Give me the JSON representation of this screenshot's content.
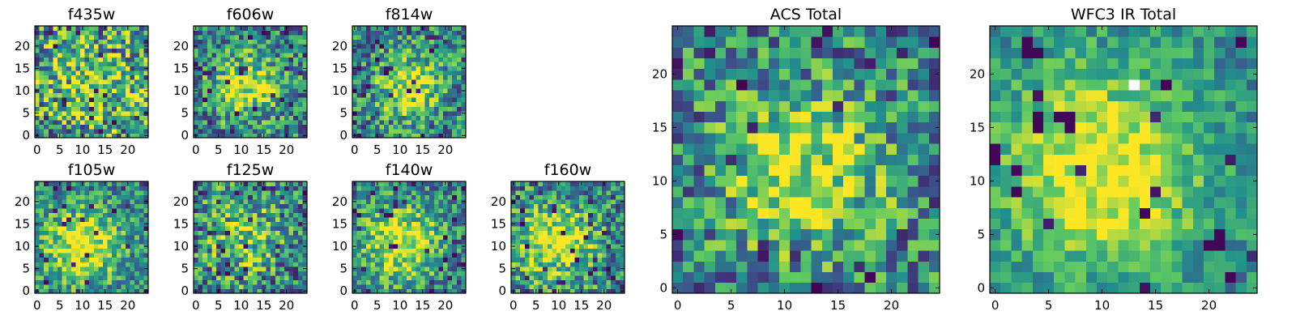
{
  "figure": {
    "colormap": [
      "#440154",
      "#3b528b",
      "#21918c",
      "#5ec962",
      "#fde725"
    ],
    "missing_color": "#ffffff"
  },
  "chart_data": [
    {
      "type": "heatmap",
      "title": "f435w",
      "grid": [
        25,
        25
      ],
      "xlim": [
        -0.5,
        24.5
      ],
      "ylim": [
        -0.5,
        24.5
      ],
      "xticks": [
        0,
        5,
        10,
        15,
        20
      ],
      "yticks": [
        0,
        5,
        10,
        15,
        20
      ],
      "xlabel": "",
      "ylabel": "",
      "values": {
        "center": [
          12,
          12
        ],
        "peak": 0.55,
        "width": 9,
        "noise": 0.45,
        "seed": 11,
        "dark_fraction": 0.03,
        "masked": []
      }
    },
    {
      "type": "heatmap",
      "title": "f606w",
      "grid": [
        25,
        25
      ],
      "xlim": [
        -0.5,
        24.5
      ],
      "ylim": [
        -0.5,
        24.5
      ],
      "xticks": [
        0,
        5,
        10,
        15,
        20
      ],
      "yticks": [
        0,
        5,
        10,
        15,
        20
      ],
      "xlabel": "",
      "ylabel": "",
      "values": {
        "center": [
          11,
          11
        ],
        "peak": 0.9,
        "width": 5,
        "noise": 0.35,
        "seed": 23,
        "dark_fraction": 0.04,
        "masked": []
      }
    },
    {
      "type": "heatmap",
      "title": "f814w",
      "grid": [
        25,
        25
      ],
      "xlim": [
        -0.5,
        24.5
      ],
      "ylim": [
        -0.5,
        24.5
      ],
      "xticks": [
        0,
        5,
        10,
        15,
        20
      ],
      "yticks": [
        0,
        5,
        10,
        15,
        20
      ],
      "xlabel": "",
      "ylabel": "",
      "values": {
        "center": [
          12,
          11
        ],
        "peak": 0.85,
        "width": 5,
        "noise": 0.35,
        "seed": 37,
        "dark_fraction": 0.04,
        "masked": []
      }
    },
    {
      "type": "heatmap",
      "title": "f105w",
      "grid": [
        25,
        25
      ],
      "xlim": [
        -0.5,
        24.5
      ],
      "ylim": [
        -0.5,
        24.5
      ],
      "xticks": [
        0,
        5,
        10,
        15,
        20
      ],
      "yticks": [
        0,
        5,
        10,
        15,
        20
      ],
      "xlabel": "",
      "ylabel": "",
      "values": {
        "center": [
          10,
          10
        ],
        "peak": 1.0,
        "width": 6,
        "noise": 0.3,
        "seed": 41,
        "dark_fraction": 0.05,
        "masked": []
      }
    },
    {
      "type": "heatmap",
      "title": "f125w",
      "grid": [
        25,
        25
      ],
      "xlim": [
        -0.5,
        24.5
      ],
      "ylim": [
        -0.5,
        24.5
      ],
      "xticks": [
        0,
        5,
        10,
        15,
        20
      ],
      "yticks": [
        0,
        5,
        10,
        15,
        20
      ],
      "xlabel": "",
      "ylabel": "",
      "values": {
        "center": [
          11,
          12
        ],
        "peak": 0.6,
        "width": 6,
        "noise": 0.4,
        "seed": 53,
        "dark_fraction": 0.05,
        "masked": []
      }
    },
    {
      "type": "heatmap",
      "title": "f140w",
      "grid": [
        25,
        25
      ],
      "xlim": [
        -0.5,
        24.5
      ],
      "ylim": [
        -0.5,
        24.5
      ],
      "xticks": [
        0,
        5,
        10,
        15,
        20
      ],
      "yticks": [
        0,
        5,
        10,
        15,
        20
      ],
      "xlabel": "",
      "ylabel": "",
      "values": {
        "center": [
          10,
          11
        ],
        "peak": 0.95,
        "width": 6,
        "noise": 0.3,
        "seed": 67,
        "dark_fraction": 0.05,
        "masked": []
      }
    },
    {
      "type": "heatmap",
      "title": "f160w",
      "grid": [
        25,
        25
      ],
      "xlim": [
        -0.5,
        24.5
      ],
      "ylim": [
        -0.5,
        24.5
      ],
      "xticks": [
        0,
        5,
        10,
        15,
        20
      ],
      "yticks": [
        0,
        5,
        10,
        15,
        20
      ],
      "xlabel": "",
      "ylabel": "",
      "values": {
        "center": [
          9,
          11
        ],
        "peak": 0.95,
        "width": 6,
        "noise": 0.35,
        "seed": 79,
        "dark_fraction": 0.06,
        "masked": []
      }
    },
    {
      "type": "heatmap",
      "title": "ACS Total",
      "grid": [
        25,
        25
      ],
      "xlim": [
        -0.5,
        24.5
      ],
      "ylim": [
        -0.5,
        24.5
      ],
      "xticks": [
        0,
        5,
        10,
        15,
        20
      ],
      "yticks": [
        0,
        5,
        10,
        15,
        20
      ],
      "xlabel": "",
      "ylabel": "",
      "values": {
        "center": [
          12,
          11
        ],
        "peak": 0.9,
        "width": 5,
        "noise": 0.35,
        "seed": 97,
        "dark_fraction": 0.04,
        "masked": []
      }
    },
    {
      "type": "heatmap",
      "title": "WFC3 IR Total",
      "grid": [
        25,
        25
      ],
      "xlim": [
        -0.5,
        24.5
      ],
      "ylim": [
        -0.5,
        24.5
      ],
      "xticks": [
        0,
        5,
        10,
        15,
        20
      ],
      "yticks": [
        0,
        5,
        10,
        15,
        20
      ],
      "xlabel": "",
      "ylabel": "",
      "values": {
        "center": [
          10,
          11
        ],
        "peak": 1.0,
        "width": 7,
        "noise": 0.2,
        "seed": 131,
        "dark_fraction": 0.02,
        "dark_pixels": [
          [
            4,
            15
          ],
          [
            4,
            16
          ],
          [
            7,
            15
          ],
          [
            7,
            16
          ],
          [
            6,
            16
          ],
          [
            3,
            23
          ],
          [
            3,
            22
          ],
          [
            4,
            22
          ],
          [
            21,
            4
          ],
          [
            21,
            5
          ],
          [
            20,
            4
          ],
          [
            0,
            12
          ],
          [
            0,
            13
          ],
          [
            14,
            7
          ],
          [
            22,
            1
          ],
          [
            23,
            23
          ],
          [
            2,
            9
          ]
        ],
        "masked": [
          [
            13,
            19
          ]
        ]
      }
    }
  ]
}
